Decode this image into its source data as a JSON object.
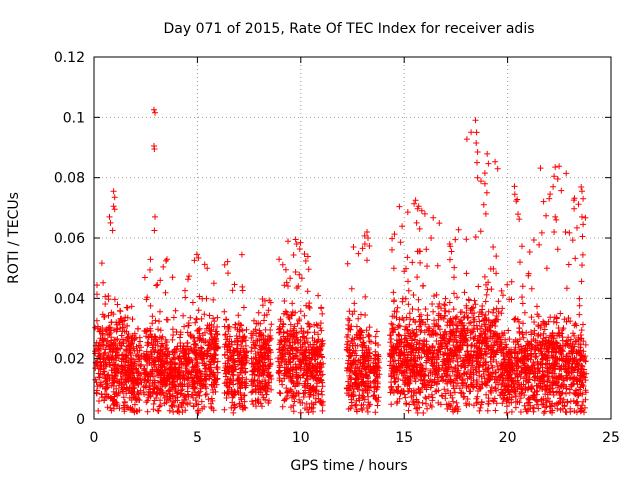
{
  "chart_data": {
    "type": "scatter",
    "title": "Day 071 of 2015, Rate Of TEC Index for receiver adis",
    "xlabel": "GPS time / hours",
    "ylabel": "ROTI / TECUs",
    "xlim": [
      0,
      25
    ],
    "ylim": [
      0,
      0.12
    ],
    "x_ticks": [
      "0",
      "5",
      "10",
      "15",
      "20",
      "25"
    ],
    "y_ticks": [
      "0",
      "0.02",
      "0.04",
      "0.06",
      "0.08",
      "0.1",
      "0.12"
    ],
    "grid": true,
    "marker": "+",
    "series_color": "#ff0000",
    "segments": [
      {
        "start": 0.05,
        "end": 1.6,
        "base": 0.018,
        "spread": 0.012,
        "peak": 0.055
      },
      {
        "start": 1.6,
        "end": 2.3,
        "base": 0.016,
        "spread": 0.01,
        "peak": 0.04
      },
      {
        "start": 2.4,
        "end": 3.6,
        "base": 0.017,
        "spread": 0.01,
        "peak": 0.053
      },
      {
        "start": 3.6,
        "end": 4.5,
        "base": 0.014,
        "spread": 0.01,
        "peak": 0.046
      },
      {
        "start": 4.5,
        "end": 6.0,
        "base": 0.018,
        "spread": 0.012,
        "peak": 0.055
      },
      {
        "start": 6.3,
        "end": 7.4,
        "base": 0.018,
        "spread": 0.012,
        "peak": 0.054
      },
      {
        "start": 7.6,
        "end": 8.6,
        "base": 0.018,
        "spread": 0.011,
        "peak": 0.044
      },
      {
        "start": 8.9,
        "end": 10.4,
        "base": 0.02,
        "spread": 0.012,
        "peak": 0.06
      },
      {
        "start": 10.4,
        "end": 11.1,
        "base": 0.016,
        "spread": 0.011,
        "peak": 0.041
      },
      {
        "start": 12.2,
        "end": 13.4,
        "base": 0.018,
        "spread": 0.012,
        "peak": 0.062
      },
      {
        "start": 13.5,
        "end": 13.8,
        "base": 0.015,
        "spread": 0.008,
        "peak": 0.03
      },
      {
        "start": 14.3,
        "end": 18.0,
        "base": 0.02,
        "spread": 0.013,
        "peak": 0.072
      },
      {
        "start": 18.0,
        "end": 19.6,
        "base": 0.022,
        "spread": 0.014,
        "peak": 0.099
      },
      {
        "start": 19.6,
        "end": 20.3,
        "base": 0.016,
        "spread": 0.01,
        "peak": 0.05
      },
      {
        "start": 20.3,
        "end": 23.8,
        "base": 0.017,
        "spread": 0.012,
        "peak": 0.084
      }
    ],
    "outliers": [
      [
        2.9,
        0.1025
      ],
      [
        2.95,
        0.1015
      ],
      [
        2.9,
        0.0905
      ],
      [
        2.92,
        0.0895
      ],
      [
        2.95,
        0.067
      ],
      [
        2.92,
        0.0625
      ],
      [
        0.95,
        0.0755
      ],
      [
        1.0,
        0.0735
      ],
      [
        0.95,
        0.0705
      ],
      [
        1.0,
        0.0695
      ],
      [
        0.75,
        0.067
      ],
      [
        0.8,
        0.065
      ],
      [
        0.9,
        0.0625
      ],
      [
        18.45,
        0.099
      ],
      [
        18.5,
        0.095
      ],
      [
        18.48,
        0.0915
      ],
      [
        18.55,
        0.0885
      ],
      [
        18.52,
        0.085
      ],
      [
        18.55,
        0.08
      ],
      [
        18.9,
        0.0815
      ],
      [
        18.9,
        0.078
      ],
      [
        19.0,
        0.075
      ],
      [
        18.85,
        0.071
      ],
      [
        18.95,
        0.068
      ],
      [
        22.3,
        0.0835
      ],
      [
        22.25,
        0.0805
      ],
      [
        22.2,
        0.077
      ],
      [
        22.3,
        0.067
      ],
      [
        22.35,
        0.066
      ],
      [
        22.25,
        0.062
      ],
      [
        20.35,
        0.0745
      ],
      [
        23.6,
        0.0755
      ],
      [
        23.65,
        0.073
      ],
      [
        23.6,
        0.067
      ],
      [
        23.65,
        0.0645
      ],
      [
        23.62,
        0.0605
      ],
      [
        23.6,
        0.051
      ],
      [
        15.55,
        0.0725
      ],
      [
        15.7,
        0.0705
      ],
      [
        15.85,
        0.069
      ],
      [
        16.0,
        0.068
      ],
      [
        15.6,
        0.065
      ],
      [
        15.75,
        0.063
      ],
      [
        16.3,
        0.06
      ],
      [
        17.2,
        0.058
      ],
      [
        19.3,
        0.057
      ],
      [
        19.45,
        0.054
      ],
      [
        13.2,
        0.062
      ],
      [
        13.25,
        0.06
      ],
      [
        13.1,
        0.058
      ],
      [
        12.55,
        0.057
      ],
      [
        9.75,
        0.0595
      ],
      [
        9.8,
        0.058
      ],
      [
        7.15,
        0.0545
      ],
      [
        14.5,
        0.05
      ],
      [
        20.6,
        0.052
      ],
      [
        21.0,
        0.0475
      ],
      [
        22.8,
        0.062
      ],
      [
        21.9,
        0.05
      ],
      [
        5.8,
        0.045
      ],
      [
        3.8,
        0.047
      ]
    ]
  }
}
